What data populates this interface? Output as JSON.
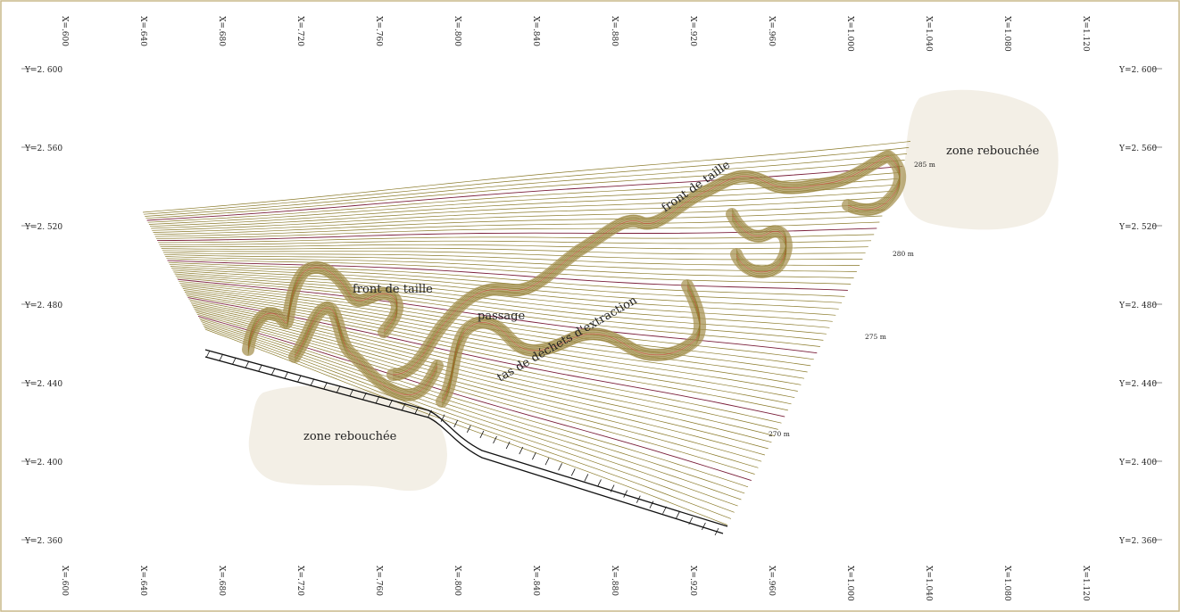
{
  "map": {
    "x_labels": [
      "X=.600",
      "X=.640",
      "X=.680",
      "X=.720",
      "X=.760",
      "X=.800",
      "X=.840",
      "X=.880",
      "X=.920",
      "X=.960",
      "X=1.000",
      "X=1.040",
      "X=1.080",
      "X=1.120"
    ],
    "y_labels": [
      "Y=2. 600",
      "Y=2. 560",
      "Y=2. 520",
      "Y=2. 480",
      "Y=2. 440",
      "Y=2. 400",
      "Y=2. 360"
    ],
    "zones": {
      "zone_left": "zone rebouchée",
      "zone_right": "zone rebouchée"
    },
    "labels": {
      "front_left": "front de taille",
      "front_right": "front de taille",
      "passage": "passage",
      "tas": "tas de déchets d'extraction"
    },
    "altitudes": {
      "a285": "285 m",
      "a280": "280 m",
      "a275": "275 m",
      "a270": "270 m"
    },
    "colors": {
      "frame": "#c9b98a",
      "contour": "#8a7a2a",
      "contour_index": "#7a1f3a",
      "contour_red": "#c8342c",
      "zone_fill": "#f3efe6",
      "quarry_band": "#a89455"
    }
  }
}
